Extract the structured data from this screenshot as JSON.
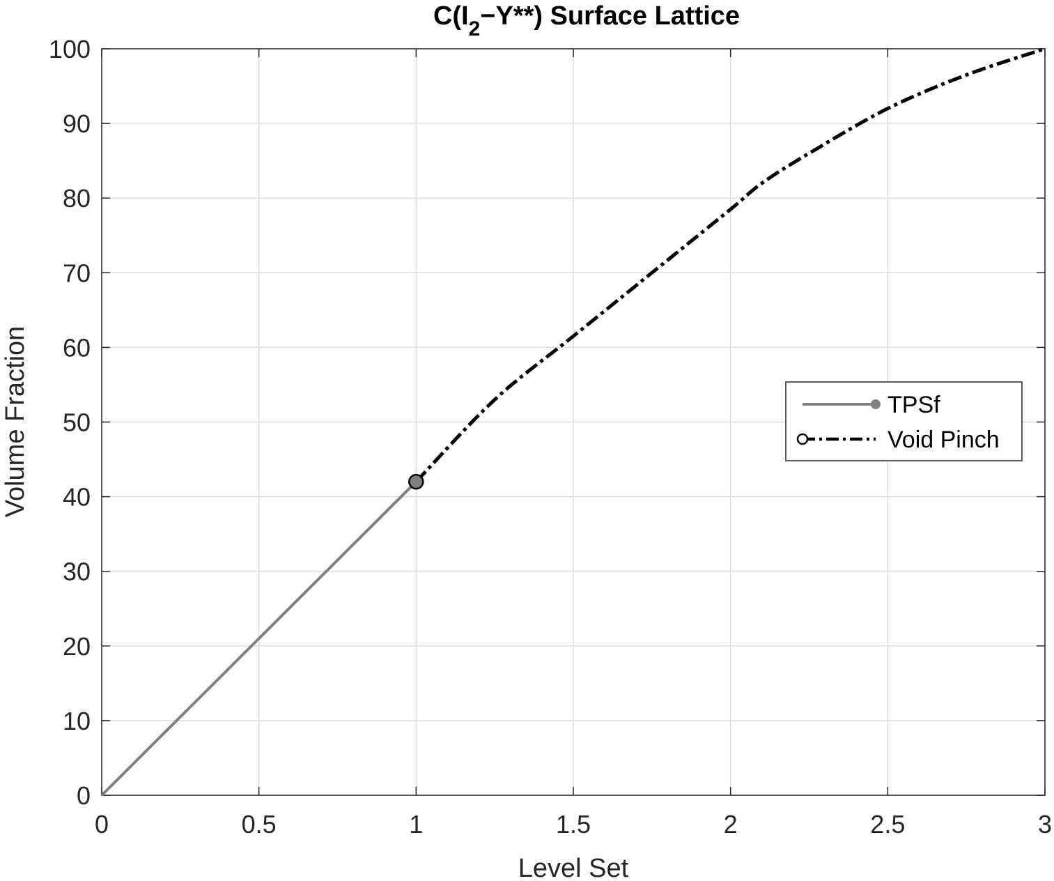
{
  "chart_data": {
    "type": "line",
    "title_parts": {
      "prefix": "C(I",
      "sub": "2",
      "suffix": "−Y**) Surface Lattice"
    },
    "xlabel": "Level Set",
    "ylabel": "Volume Fraction",
    "xlim": [
      0,
      3
    ],
    "ylim": [
      0,
      100
    ],
    "xticks": [
      0,
      0.5,
      1,
      1.5,
      2,
      2.5,
      3
    ],
    "xtick_labels": [
      "0",
      "0.5",
      "1",
      "1.5",
      "2",
      "2.5",
      "3"
    ],
    "yticks": [
      0,
      10,
      20,
      30,
      40,
      50,
      60,
      70,
      80,
      90,
      100
    ],
    "ytick_labels": [
      "0",
      "10",
      "20",
      "30",
      "40",
      "50",
      "60",
      "70",
      "80",
      "90",
      "100"
    ],
    "grid": true,
    "legend_position": "right",
    "series": [
      {
        "name": "TPSf",
        "color": "#808080",
        "line_style": "solid",
        "marker": "filled-circle-at-end",
        "x": [
          0,
          1
        ],
        "y": [
          0,
          42
        ]
      },
      {
        "name": "Void Pinch",
        "color": "#000000",
        "line_style": "dash-dot",
        "marker": "open-circle-at-start",
        "x": [
          1,
          1.25,
          1.5,
          1.75,
          2,
          2.1,
          2.25,
          2.5,
          2.75,
          3
        ],
        "y": [
          42,
          53,
          61.5,
          70,
          78.5,
          82,
          86,
          92,
          96.5,
          100
        ]
      }
    ],
    "markers": [
      {
        "x": 1,
        "y": 42,
        "fill": "#808080",
        "stroke": "#000000"
      }
    ]
  }
}
